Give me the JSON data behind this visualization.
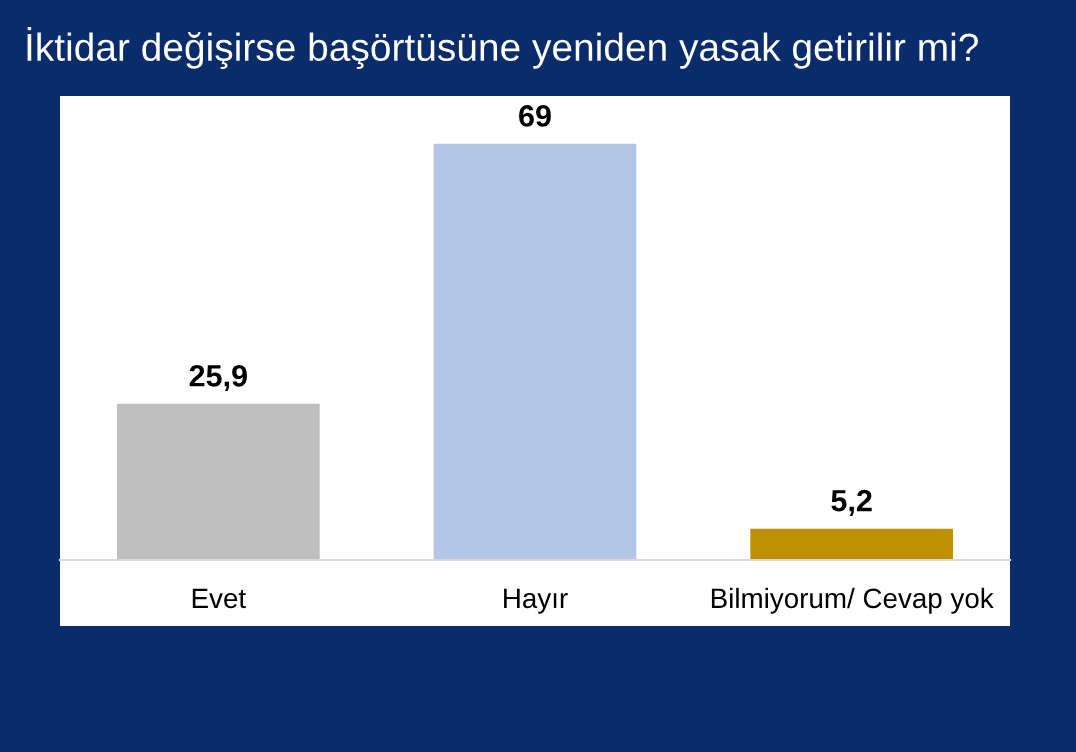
{
  "chart_data": {
    "type": "bar",
    "title": "İktidar değişirse başörtüsüne yeniden yasak getirilir mi?",
    "categories": [
      "Evet",
      "Hayır",
      "Bilmiyorum/ Cevap yok"
    ],
    "values": [
      25.9,
      69,
      5.2
    ],
    "colors": [
      "#bfbfbf",
      "#b4c6e7",
      "#bf9000"
    ],
    "value_labels": [
      "25,9",
      "69",
      "5,2"
    ],
    "grid": false,
    "legend": false
  }
}
